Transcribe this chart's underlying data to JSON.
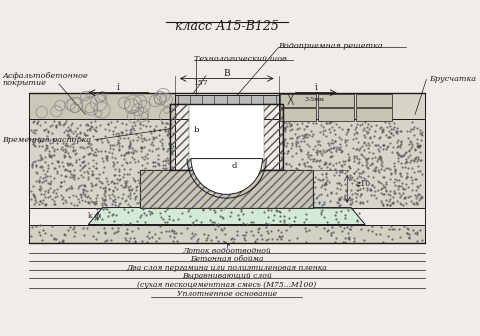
{
  "title": "класс А15-В125",
  "bg_color": "#f0ede8",
  "black": "#1a1a1a",
  "labels_bottom": [
    "Лоток водоотводной",
    "Бетонная обойма",
    "Два слоя пергамина или полиэтиленовая пленка",
    "Выравнивающий слой",
    "(сухая пескоцементная смесь (М75...М100)",
    "Уплотненное основание"
  ]
}
